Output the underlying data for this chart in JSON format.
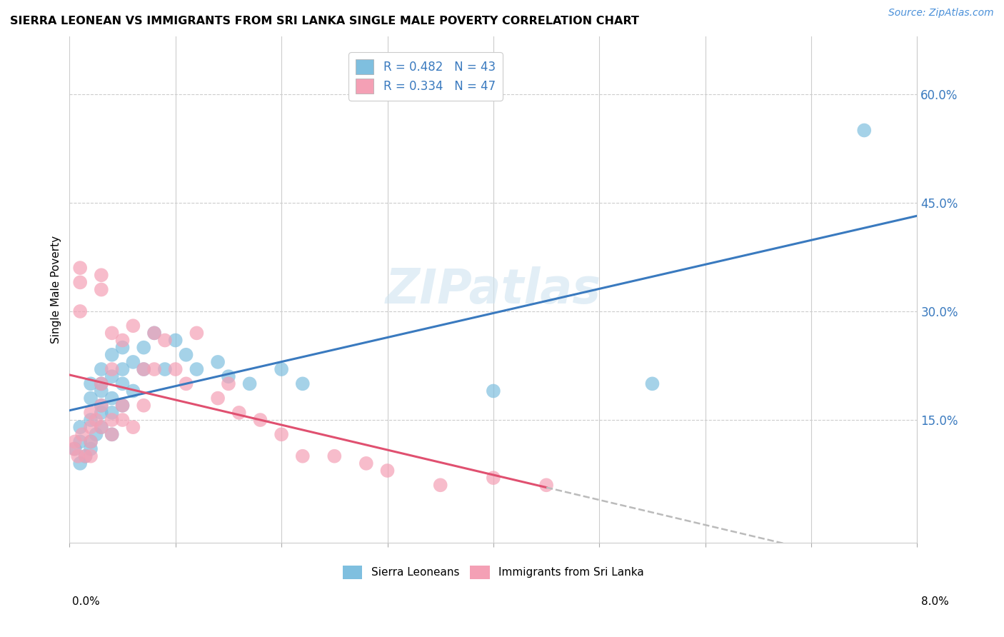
{
  "title": "SIERRA LEONEAN VS IMMIGRANTS FROM SRI LANKA SINGLE MALE POVERTY CORRELATION CHART",
  "source": "Source: ZipAtlas.com",
  "ylabel": "Single Male Poverty",
  "ytick_labels": [
    "15.0%",
    "30.0%",
    "45.0%",
    "60.0%"
  ],
  "ytick_positions": [
    0.15,
    0.3,
    0.45,
    0.6
  ],
  "xlim": [
    0.0,
    0.08
  ],
  "ylim": [
    -0.02,
    0.68
  ],
  "blue_color": "#7fbfdf",
  "pink_color": "#f4a0b5",
  "blue_line_color": "#3a7abf",
  "pink_line_color": "#e05070",
  "gray_dash_color": "#bbbbbb",
  "watermark": "ZIPatlas",
  "blue_points_x": [
    0.0005,
    0.001,
    0.001,
    0.001,
    0.0015,
    0.002,
    0.002,
    0.002,
    0.002,
    0.002,
    0.0025,
    0.003,
    0.003,
    0.003,
    0.003,
    0.003,
    0.003,
    0.004,
    0.004,
    0.004,
    0.004,
    0.004,
    0.005,
    0.005,
    0.005,
    0.005,
    0.006,
    0.006,
    0.007,
    0.007,
    0.008,
    0.009,
    0.01,
    0.011,
    0.012,
    0.014,
    0.015,
    0.017,
    0.02,
    0.022,
    0.04,
    0.055,
    0.075
  ],
  "blue_points_y": [
    0.11,
    0.09,
    0.12,
    0.14,
    0.1,
    0.12,
    0.15,
    0.18,
    0.2,
    0.11,
    0.13,
    0.14,
    0.17,
    0.2,
    0.22,
    0.19,
    0.16,
    0.18,
    0.21,
    0.24,
    0.16,
    0.13,
    0.22,
    0.25,
    0.2,
    0.17,
    0.23,
    0.19,
    0.25,
    0.22,
    0.27,
    0.22,
    0.26,
    0.24,
    0.22,
    0.23,
    0.21,
    0.2,
    0.22,
    0.2,
    0.19,
    0.2,
    0.55
  ],
  "pink_points_x": [
    0.0004,
    0.0005,
    0.0008,
    0.001,
    0.001,
    0.001,
    0.0012,
    0.0015,
    0.002,
    0.002,
    0.002,
    0.002,
    0.0025,
    0.003,
    0.003,
    0.003,
    0.003,
    0.003,
    0.004,
    0.004,
    0.004,
    0.004,
    0.005,
    0.005,
    0.005,
    0.006,
    0.006,
    0.007,
    0.007,
    0.008,
    0.008,
    0.009,
    0.01,
    0.011,
    0.012,
    0.014,
    0.015,
    0.016,
    0.018,
    0.02,
    0.022,
    0.025,
    0.028,
    0.03,
    0.035,
    0.04,
    0.045
  ],
  "pink_points_y": [
    0.11,
    0.12,
    0.1,
    0.34,
    0.36,
    0.3,
    0.13,
    0.1,
    0.14,
    0.16,
    0.12,
    0.1,
    0.15,
    0.33,
    0.35,
    0.14,
    0.17,
    0.2,
    0.27,
    0.15,
    0.22,
    0.13,
    0.15,
    0.17,
    0.26,
    0.14,
    0.28,
    0.17,
    0.22,
    0.27,
    0.22,
    0.26,
    0.22,
    0.2,
    0.27,
    0.18,
    0.2,
    0.16,
    0.15,
    0.13,
    0.1,
    0.1,
    0.09,
    0.08,
    0.06,
    0.07,
    0.06
  ]
}
